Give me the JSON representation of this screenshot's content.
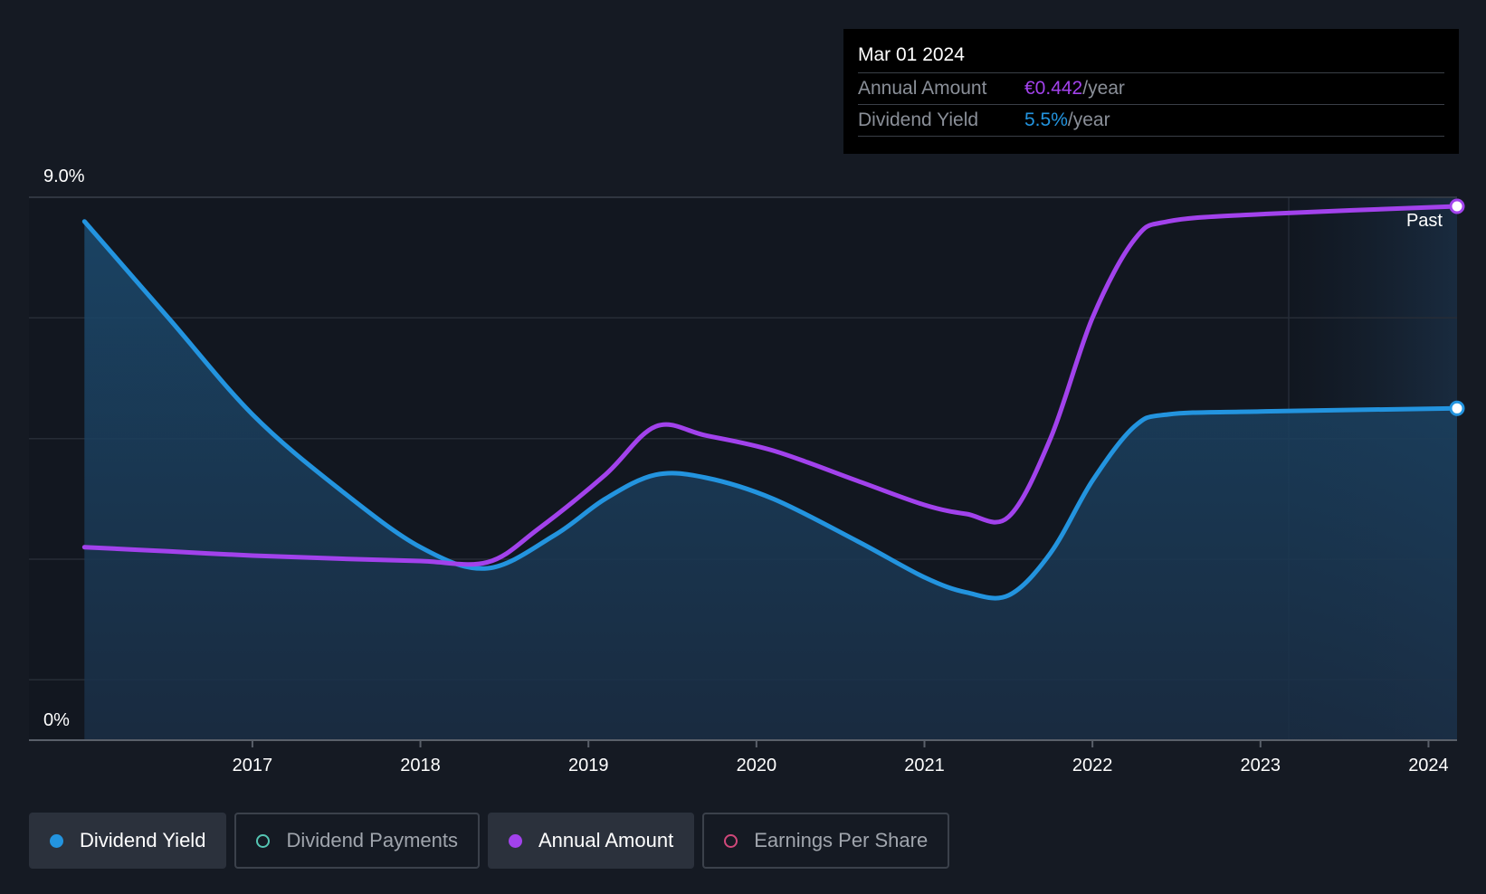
{
  "chart_data": {
    "type": "line",
    "x_domain": [
      2015.67,
      2024.17
    ],
    "y_ticks": [
      "9.0%",
      "0%"
    ],
    "x_ticks": [
      "2017",
      "2018",
      "2019",
      "2020",
      "2021",
      "2022",
      "2023",
      "2024"
    ],
    "ylim": [
      0,
      9
    ],
    "forecast_label": "Past",
    "grid": true,
    "series": [
      {
        "name": "Dividend Yield",
        "color": "#2394df",
        "fill": true,
        "points": [
          [
            2016.0,
            8.6
          ],
          [
            2016.5,
            7.0
          ],
          [
            2017.0,
            5.4
          ],
          [
            2017.5,
            4.2
          ],
          [
            2018.0,
            3.2
          ],
          [
            2018.4,
            2.85
          ],
          [
            2018.8,
            3.4
          ],
          [
            2019.1,
            4.0
          ],
          [
            2019.4,
            4.4
          ],
          [
            2019.7,
            4.35
          ],
          [
            2020.1,
            4.0
          ],
          [
            2020.6,
            3.3
          ],
          [
            2021.0,
            2.7
          ],
          [
            2021.25,
            2.45
          ],
          [
            2021.5,
            2.4
          ],
          [
            2021.75,
            3.1
          ],
          [
            2022.0,
            4.3
          ],
          [
            2022.25,
            5.2
          ],
          [
            2022.45,
            5.4
          ],
          [
            2023.0,
            5.45
          ],
          [
            2024.17,
            5.5
          ]
        ]
      },
      {
        "name": "Annual Amount",
        "color": "#a242ec",
        "fill": false,
        "points": [
          [
            2016.0,
            3.2
          ],
          [
            2016.5,
            3.13
          ],
          [
            2017.0,
            3.06
          ],
          [
            2017.5,
            3.01
          ],
          [
            2018.0,
            2.97
          ],
          [
            2018.4,
            2.95
          ],
          [
            2018.7,
            3.5
          ],
          [
            2019.1,
            4.4
          ],
          [
            2019.4,
            5.2
          ],
          [
            2019.7,
            5.05
          ],
          [
            2020.1,
            4.8
          ],
          [
            2020.6,
            4.3
          ],
          [
            2021.0,
            3.9
          ],
          [
            2021.25,
            3.75
          ],
          [
            2021.5,
            3.7
          ],
          [
            2021.75,
            5.0
          ],
          [
            2022.0,
            7.0
          ],
          [
            2022.25,
            8.3
          ],
          [
            2022.45,
            8.6
          ],
          [
            2023.0,
            8.72
          ],
          [
            2024.17,
            8.85
          ]
        ]
      }
    ]
  },
  "tooltip": {
    "date": "Mar 01 2024",
    "rows": [
      {
        "label": "Annual Amount",
        "value": "€0.442",
        "unit": "/year",
        "color": "#a242ec"
      },
      {
        "label": "Dividend Yield",
        "value": "5.5%",
        "unit": "/year",
        "color": "#2394df"
      }
    ]
  },
  "legend": [
    {
      "label": "Dividend Yield",
      "color": "#2394df",
      "active": true,
      "filled": true
    },
    {
      "label": "Dividend Payments",
      "color": "#55c6b4",
      "active": false,
      "filled": false
    },
    {
      "label": "Annual Amount",
      "color": "#a242ec",
      "active": true,
      "filled": true
    },
    {
      "label": "Earnings Per Share",
      "color": "#d0487a",
      "active": false,
      "filled": false
    }
  ]
}
